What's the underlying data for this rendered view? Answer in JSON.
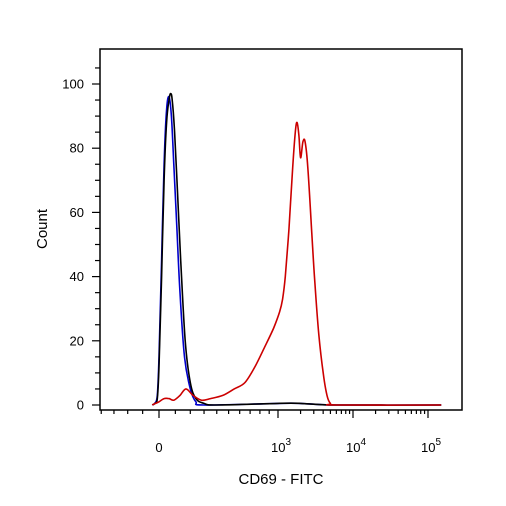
{
  "chart_data": {
    "type": "line",
    "xlabel": "CD69 - FITC",
    "ylabel": "Count",
    "ylim": [
      0,
      110
    ],
    "yticks": [
      0,
      20,
      40,
      60,
      80,
      100
    ],
    "x_scale": "biexponential",
    "x_tick_labels": [
      {
        "base": "0",
        "exp": ""
      },
      {
        "base": "10",
        "exp": "3"
      },
      {
        "base": "10",
        "exp": "4"
      },
      {
        "base": "10",
        "exp": "5"
      }
    ],
    "grid": false,
    "series": [
      {
        "color": "#0000cc",
        "points": [
          [
            -40,
            0
          ],
          [
            -25,
            0.5
          ],
          [
            -10,
            3
          ],
          [
            0,
            15
          ],
          [
            15,
            45
          ],
          [
            30,
            75
          ],
          [
            45,
            92
          ],
          [
            60,
            96
          ],
          [
            75,
            90
          ],
          [
            90,
            75
          ],
          [
            110,
            55
          ],
          [
            130,
            35
          ],
          [
            160,
            15
          ],
          [
            200,
            5
          ],
          [
            240,
            1
          ],
          [
            300,
            0
          ],
          [
            1000,
            0.5
          ],
          [
            2000,
            0.5
          ],
          [
            6000,
            0
          ],
          [
            150000,
            0
          ]
        ]
      },
      {
        "color": "#000000",
        "points": [
          [
            -40,
            0
          ],
          [
            -25,
            0.5
          ],
          [
            -10,
            2
          ],
          [
            0,
            12
          ],
          [
            15,
            40
          ],
          [
            30,
            70
          ],
          [
            45,
            88
          ],
          [
            60,
            95
          ],
          [
            70,
            97
          ],
          [
            80,
            95
          ],
          [
            95,
            85
          ],
          [
            115,
            65
          ],
          [
            135,
            45
          ],
          [
            165,
            20
          ],
          [
            200,
            7
          ],
          [
            240,
            2
          ],
          [
            300,
            0.5
          ],
          [
            400,
            0
          ],
          [
            1000,
            0.5
          ],
          [
            2000,
            0.5
          ],
          [
            6000,
            0
          ],
          [
            150000,
            0
          ]
        ]
      },
      {
        "color": "#cc0000",
        "points": [
          [
            -40,
            0
          ],
          [
            -20,
            0.5
          ],
          [
            0,
            1
          ],
          [
            30,
            2
          ],
          [
            60,
            2
          ],
          [
            90,
            1.5
          ],
          [
            130,
            3
          ],
          [
            170,
            5
          ],
          [
            220,
            3
          ],
          [
            280,
            1.5
          ],
          [
            350,
            2
          ],
          [
            450,
            3
          ],
          [
            550,
            5
          ],
          [
            650,
            7
          ],
          [
            750,
            12
          ],
          [
            850,
            18
          ],
          [
            950,
            24
          ],
          [
            1050,
            29
          ],
          [
            1150,
            33
          ],
          [
            1250,
            40
          ],
          [
            1400,
            55
          ],
          [
            1550,
            72
          ],
          [
            1700,
            85
          ],
          [
            1800,
            88
          ],
          [
            1900,
            84
          ],
          [
            2000,
            77
          ],
          [
            2150,
            82
          ],
          [
            2300,
            82
          ],
          [
            2500,
            74
          ],
          [
            2800,
            55
          ],
          [
            3100,
            38
          ],
          [
            3500,
            22
          ],
          [
            4000,
            10
          ],
          [
            4500,
            3
          ],
          [
            5000,
            0.5
          ],
          [
            6000,
            0
          ],
          [
            150000,
            0
          ]
        ]
      }
    ]
  }
}
